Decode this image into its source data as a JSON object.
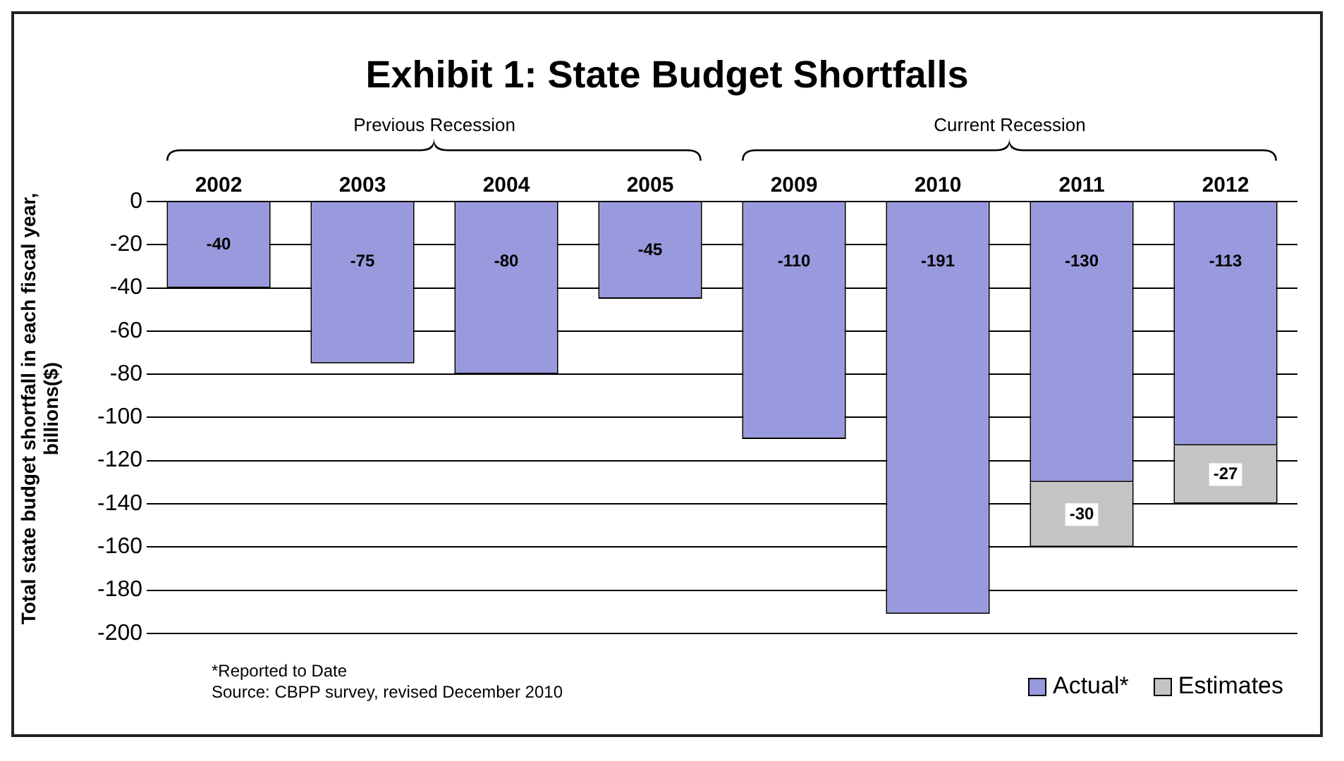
{
  "chart_data": {
    "type": "bar",
    "title": "Exhibit 1: State Budget Shortfalls",
    "ylabel": "Total state budget shortfall in each fiscal year, billions($)",
    "categories": [
      "2002",
      "2003",
      "2004",
      "2005",
      "2009",
      "2010",
      "2011",
      "2012"
    ],
    "series": [
      {
        "name": "Actual*",
        "color": "#9999dd",
        "values": [
          -40,
          -75,
          -80,
          -45,
          -110,
          -191,
          -130,
          -113
        ]
      },
      {
        "name": "Estimates",
        "color": "#c4c4c4",
        "values": [
          null,
          null,
          null,
          null,
          null,
          null,
          -30,
          -27
        ]
      }
    ],
    "stacked": true,
    "ylim": [
      -200,
      0
    ],
    "yticks": [
      0,
      -20,
      -40,
      -60,
      -80,
      -100,
      -120,
      -140,
      -160,
      -180,
      -200
    ],
    "grid": "y",
    "legend": "bottom right",
    "data_labels": true,
    "annotations": [
      "Previous Recession",
      "Current Recession",
      "*Reported to Date",
      "Source: CBPP survey, revised December 2010"
    ]
  }
}
